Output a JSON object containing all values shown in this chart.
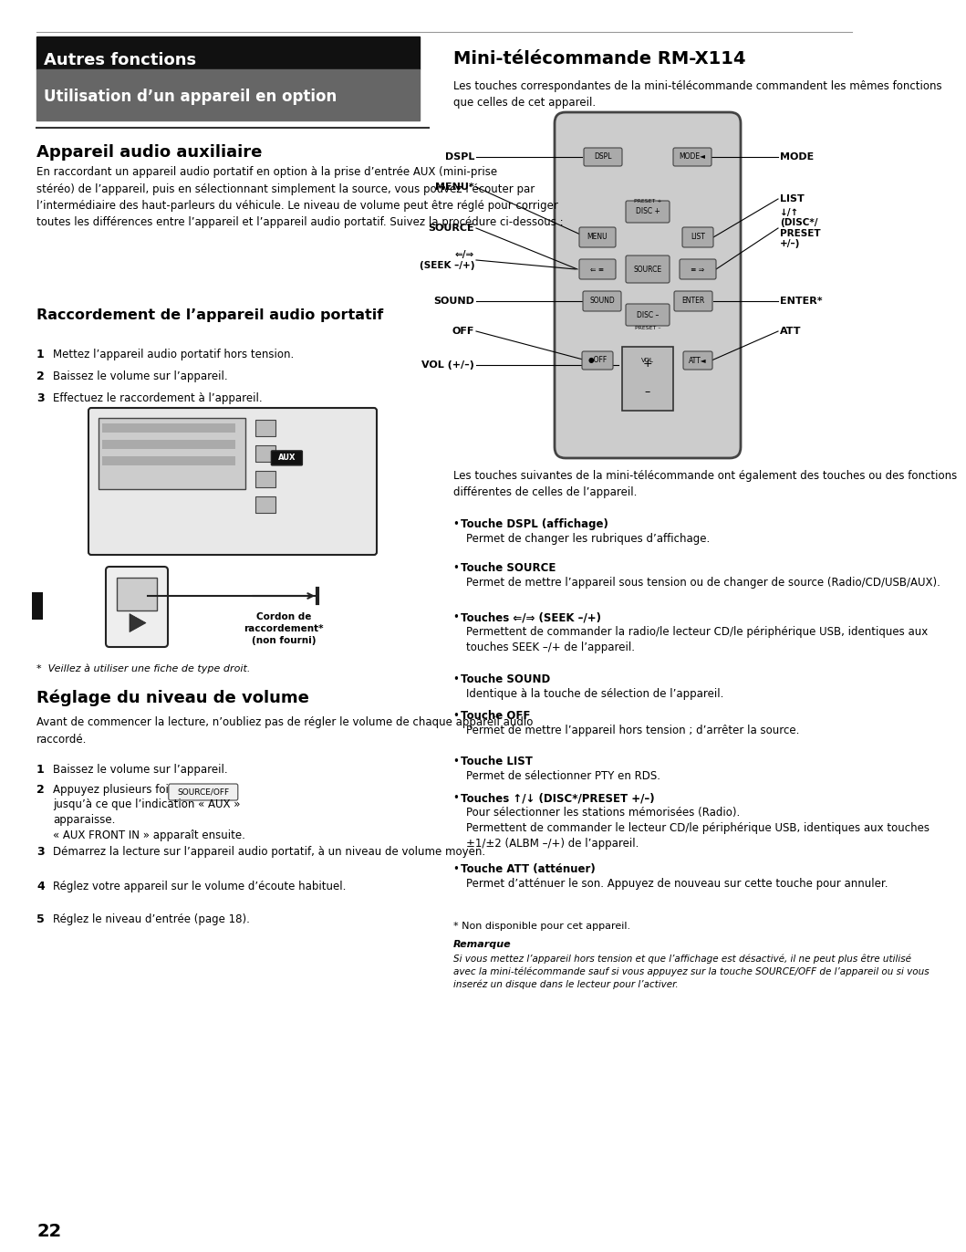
{
  "page_bg": "#ffffff",
  "header_black_bg": "#111111",
  "header_gray_bg": "#666666",
  "header_black_text": "Autres fonctions",
  "header_gray_text": "Utilisation d’un appareil en option",
  "section1_title": "Appareil audio auxiliaire",
  "section1_body": "En raccordant un appareil audio portatif en option à la prise d’entrée AUX (mini-prise\nstéréo) de l’appareil, puis en sélectionnant simplement la source, vous pouvez l’écouter par\nl’intermédiaire des haut-parleurs du véhicule. Le niveau de volume peut être réglé pour corriger\ntoutes les différences entre l’appareil et l’appareil audio portatif. Suivez la procédure ci-dessous :",
  "section2_title": "Raccordement de l’appareil audio portatif",
  "section2_steps": [
    "Mettez l’appareil audio portatif hors tension.",
    "Baissez le volume sur l’appareil.",
    "Effectuez le raccordement à l’appareil."
  ],
  "footnote": "*  Veillez à utiliser une fiche de type droit.",
  "section3_title": "Réglage du niveau de volume",
  "section3_body": "Avant de commencer la lecture, n’oubliez pas de régler le volume de chaque appareil audio\nraccordé.",
  "section3_steps": [
    "Baissez le volume sur l’appareil.",
    "Appuyez plusieurs fois sur SOURCE/OFF jusqu’à ce que l’indication « AUX »\napparaisse.\n« AUX FRONT IN » apparaît ensuite.",
    "Démarrez la lecture sur l’appareil audio portatif, à un niveau de volume moyen.",
    "Réglez votre appareil sur le volume d’écoute habituel.",
    "Réglez le niveau d’entrée (page 18)."
  ],
  "right_title": "Mini-télécommande RM-X114",
  "right_intro": "Les touches correspondantes de la mini-télécommande commandent les mêmes fonctions\nque celles de cet appareil.",
  "right_body1": "Les touches suivantes de la mini-télécommande ont également des touches ou des fonctions\ndifférentes de celles de l’appareil.",
  "bullet_items": [
    [
      "Touche DSPL (affichage)",
      "Permet de changer les rubriques d’affichage."
    ],
    [
      "Touche SOURCE",
      "Permet de mettre l’appareil sous tension ou de changer de source (Radio/CD/USB/AUX)."
    ],
    [
      "Touches ⇐/⇒ (SEEK –/+)",
      "Permettent de commander la radio/le lecteur CD/le périphérique USB, identiques aux\ntouches SEEK –/+ de l’appareil."
    ],
    [
      "Touche SOUND",
      "Identique à la touche de sélection de l’appareil."
    ],
    [
      "Touche OFF",
      "Permet de mettre l’appareil hors tension ; d’arrêter la source."
    ],
    [
      "Touche LIST",
      "Permet de sélectionner PTY en RDS."
    ],
    [
      "Touches ↑/↓ (DISC*/PRESET +/–)",
      "Pour sélectionner les stations mémorisées (Radio).\nPermettent de commander le lecteur CD/le périphérique USB, identiques aux touches\n±1/±2 (ALBM –/+) de l’appareil."
    ],
    [
      "Touche ATT (atténuer)",
      "Permet d’atténuer le son. Appuyez de nouveau sur cette touche pour annuler."
    ]
  ],
  "asterisk_note": "* Non disponible pour cet appareil.",
  "remarque_title": "Remarque",
  "remarque_body": "Si vous mettez l’appareil hors tension et que l’affichage est désactivé, il ne peut plus être utilisé\navec la mini-télécommande sauf si vous appuyez sur la touche SOURCE/OFF de l’appareil ou si vous\ninseréz un disque dans le lecteur pour l’activer.",
  "page_number": "22"
}
